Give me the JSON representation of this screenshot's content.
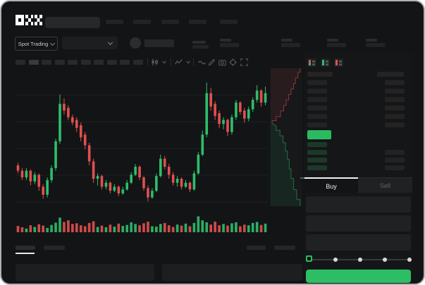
{
  "app": {
    "name": "OKX",
    "logo_text": "OKX"
  },
  "colors": {
    "window_bg": "#131416",
    "up_green": "#2ebd6b",
    "down_red": "#e0504f",
    "button_green": "#2dbd64",
    "price_bar_green": "#2abb60",
    "active_text": "#e8e8e8",
    "muted_text": "#646464"
  },
  "header": {
    "nav_item_count": 5,
    "search_placeholder": ""
  },
  "subheader": {
    "market_selector_label": "Spot Trading",
    "ticker_stat_count": 4
  },
  "chart_toolbar": {
    "timeframe_slot_count": 10,
    "active_timeframe_index": 1,
    "icons": [
      "candle-type-icon",
      "chevron-down-icon",
      "indicator-icon",
      "chevron-down-icon",
      "wave-icon",
      "pencil-icon",
      "camera-icon",
      "gear-icon",
      "expand-icon"
    ]
  },
  "orderbook": {
    "view_icons": [
      "view-combined",
      "view-bids",
      "view-asks"
    ],
    "ask_row_count": 6,
    "bid_row_count": 4,
    "bid_right_bar_count": 3,
    "last_price_highlight": "green"
  },
  "trade_form": {
    "buy_label": "Buy",
    "sell_label": "Sell",
    "active_tab": "Buy",
    "field_count": 3,
    "slider_stop_count": 5,
    "slider_value_index": 0
  },
  "below_chart": {
    "tab_count": 2,
    "active_tab_index": 0,
    "right_block_count": 2,
    "bottom_panel_count": 2
  },
  "chart_data": {
    "type": "candlestick",
    "title": "",
    "xlabel": "",
    "ylabel": "",
    "axis_labels_visible": false,
    "grid": true,
    "value_scale": "relative 0-100 (no numeric price labels rendered in UI)",
    "candles_ohlc": [
      [
        30,
        32,
        24,
        26
      ],
      [
        26,
        28,
        19,
        21
      ],
      [
        21,
        28,
        19,
        26
      ],
      [
        26,
        27,
        15,
        18
      ],
      [
        18,
        25,
        16,
        23
      ],
      [
        23,
        24,
        11,
        14
      ],
      [
        14,
        16,
        5,
        8
      ],
      [
        8,
        21,
        6,
        19
      ],
      [
        19,
        30,
        17,
        28
      ],
      [
        28,
        50,
        26,
        48
      ],
      [
        48,
        83,
        46,
        76
      ],
      [
        76,
        80,
        68,
        71
      ],
      [
        73,
        75,
        64,
        66
      ],
      [
        66,
        68,
        60,
        62
      ],
      [
        64,
        66,
        55,
        58
      ],
      [
        60,
        62,
        48,
        51
      ],
      [
        53,
        55,
        42,
        45
      ],
      [
        45,
        47,
        30,
        33
      ],
      [
        33,
        35,
        17,
        20
      ],
      [
        20,
        24,
        15,
        22
      ],
      [
        22,
        23,
        12,
        14
      ],
      [
        14,
        19,
        12,
        17
      ],
      [
        17,
        18,
        9,
        11
      ],
      [
        11,
        16,
        10,
        14
      ],
      [
        14,
        15,
        7,
        9
      ],
      [
        9,
        14,
        8,
        12
      ],
      [
        12,
        19,
        11,
        17
      ],
      [
        17,
        25,
        16,
        23
      ],
      [
        23,
        31,
        22,
        29
      ],
      [
        29,
        30,
        19,
        21
      ],
      [
        21,
        22,
        11,
        13
      ],
      [
        13,
        15,
        3,
        6
      ],
      [
        6,
        13,
        5,
        11
      ],
      [
        11,
        24,
        10,
        22
      ],
      [
        22,
        38,
        21,
        35
      ],
      [
        35,
        37,
        27,
        29
      ],
      [
        29,
        31,
        20,
        23
      ],
      [
        23,
        25,
        15,
        17
      ],
      [
        17,
        22,
        14,
        20
      ],
      [
        20,
        21,
        12,
        14
      ],
      [
        14,
        19,
        13,
        17
      ],
      [
        17,
        18,
        10,
        12
      ],
      [
        12,
        26,
        11,
        24
      ],
      [
        24,
        40,
        23,
        38
      ],
      [
        38,
        56,
        37,
        53
      ],
      [
        53,
        92,
        51,
        84
      ],
      [
        84,
        88,
        71,
        74
      ],
      [
        76,
        78,
        64,
        67
      ],
      [
        69,
        71,
        58,
        61
      ],
      [
        61,
        66,
        57,
        64
      ],
      [
        64,
        65,
        52,
        55
      ],
      [
        55,
        68,
        53,
        66
      ],
      [
        66,
        79,
        64,
        77
      ],
      [
        77,
        78,
        68,
        70
      ],
      [
        71,
        73,
        62,
        65
      ],
      [
        65,
        74,
        63,
        72
      ],
      [
        72,
        81,
        70,
        79
      ],
      [
        79,
        90,
        77,
        86
      ],
      [
        86,
        87,
        74,
        77
      ],
      [
        77,
        89,
        75,
        84
      ]
    ],
    "volume": [
      38,
      30,
      22,
      42,
      32,
      48,
      40,
      26,
      44,
      58,
      88,
      62,
      72,
      50,
      54,
      42,
      36,
      56,
      66,
      32,
      40,
      30,
      46,
      34,
      52,
      38,
      44,
      60,
      50,
      42,
      54,
      64,
      36,
      34,
      50,
      56,
      42,
      32,
      46,
      40,
      52,
      36,
      56,
      96,
      72,
      60,
      46,
      64,
      42,
      50,
      40,
      54,
      60,
      36,
      46,
      42,
      56,
      62,
      44,
      52
    ],
    "depth": {
      "type": "depth",
      "orientation": "vertical",
      "asks_curve": [
        [
          0.95,
          0.0
        ],
        [
          0.95,
          0.03
        ],
        [
          0.88,
          0.03
        ],
        [
          0.88,
          0.07
        ],
        [
          0.8,
          0.07
        ],
        [
          0.8,
          0.11
        ],
        [
          0.74,
          0.11
        ],
        [
          0.74,
          0.15
        ],
        [
          0.66,
          0.15
        ],
        [
          0.66,
          0.19
        ],
        [
          0.58,
          0.19
        ],
        [
          0.58,
          0.23
        ],
        [
          0.5,
          0.23
        ],
        [
          0.5,
          0.27
        ],
        [
          0.42,
          0.27
        ],
        [
          0.42,
          0.31
        ],
        [
          0.32,
          0.31
        ],
        [
          0.32,
          0.35
        ],
        [
          0.18,
          0.35
        ],
        [
          0.18,
          0.38
        ],
        [
          0.05,
          0.38
        ],
        [
          0.05,
          0.4
        ]
      ],
      "bids_curve": [
        [
          0.05,
          0.4
        ],
        [
          0.18,
          0.42
        ],
        [
          0.18,
          0.45
        ],
        [
          0.3,
          0.45
        ],
        [
          0.3,
          0.49
        ],
        [
          0.4,
          0.49
        ],
        [
          0.4,
          0.54
        ],
        [
          0.48,
          0.54
        ],
        [
          0.48,
          0.6
        ],
        [
          0.54,
          0.6
        ],
        [
          0.54,
          0.66
        ],
        [
          0.6,
          0.66
        ],
        [
          0.6,
          0.73
        ],
        [
          0.66,
          0.73
        ],
        [
          0.66,
          0.8
        ],
        [
          0.74,
          0.8
        ],
        [
          0.74,
          0.88
        ],
        [
          0.84,
          0.88
        ],
        [
          0.84,
          0.95
        ],
        [
          0.95,
          0.95
        ],
        [
          0.95,
          1.0
        ]
      ]
    }
  }
}
